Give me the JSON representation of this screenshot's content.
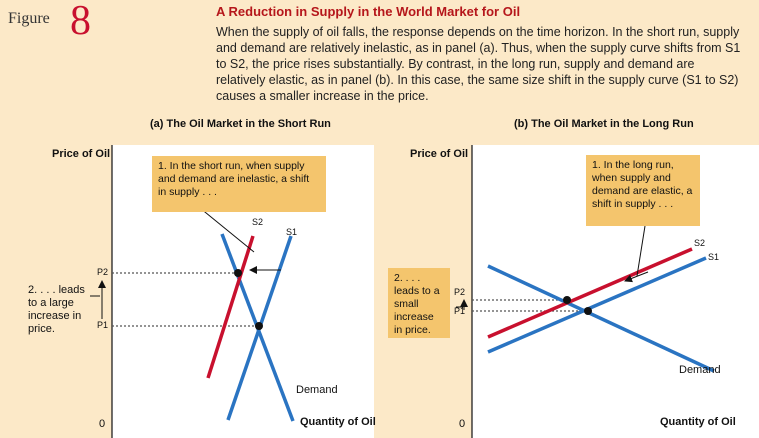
{
  "figure": {
    "label": "Figure",
    "number": "8"
  },
  "title": "A Reduction in Supply in the World Market for Oil",
  "description": "When the supply of oil falls, the response depends on the time horizon. In the short run, supply and demand are relatively inelastic, as in panel (a). Thus, when the supply curve shifts from S1 to S2, the price rises substantially. By contrast, in the long run, supply and demand are relatively elastic, as in panel (b). In this case, the same size shift in the supply curve (S1 to S2) causes a smaller increase in the price.",
  "panel_a": {
    "subtitle": "(a) The Oil Market in the Short Run",
    "y_axis": "Price of Oil",
    "x_axis": "Quantity of Oil",
    "origin": "0",
    "callout": "1. In the short run, when supply and demand are inelastic, a shift in supply . . .",
    "side_note": "2. . . . leads to a large increase in price.",
    "p2": "P2",
    "p1": "P1",
    "s2": "S2",
    "s1": "S1",
    "demand": "Demand"
  },
  "panel_b": {
    "subtitle": "(b) The Oil Market in the Long Run",
    "y_axis": "Price of Oil",
    "x_axis": "Quantity of Oil",
    "origin": "0",
    "callout": "1. In the long run, when supply and demand are elastic, a shift in supply . . .",
    "side_note": "2. . . . leads to a small increase in price.",
    "p2": "P2",
    "p1": "P1",
    "s2": "S2",
    "s1": "S1",
    "demand": "Demand"
  },
  "colors": {
    "s2": "#c8102e",
    "s1": "#2a74c2",
    "demand": "#2a74c2",
    "callout": "#f4c56d",
    "background": "#fce9c8"
  }
}
